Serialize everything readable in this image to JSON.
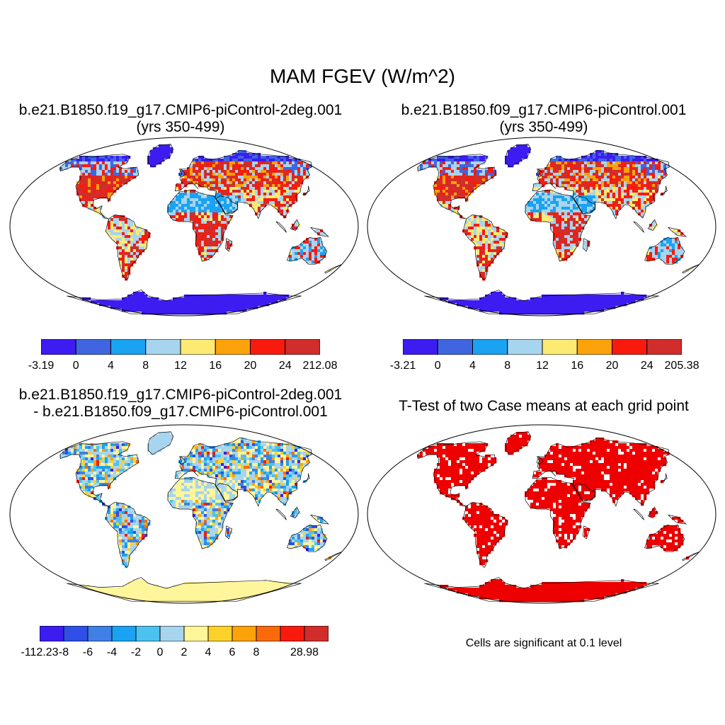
{
  "title": "MAM FGEV (W/m^2)",
  "panels": [
    {
      "title_line1": "b.e21.B1850.f19_g17.CMIP6-piControl-2deg.001",
      "title_line2": "(yrs 350-499)",
      "colorbar": {
        "colors": [
          "#3d1cf2",
          "#3f66e0",
          "#1aa3f2",
          "#a7d4ee",
          "#fdea73",
          "#fca20b",
          "#f91a0e",
          "#d12d2b"
        ],
        "labels": [
          "-3.19",
          "0",
          "4",
          "8",
          "12",
          "16",
          "20",
          "24",
          "212.08"
        ]
      }
    },
    {
      "title_line1": "b.e21.B1850.f09_g17.CMIP6-piControl.001",
      "title_line2": "(yrs 350-499)",
      "colorbar": {
        "colors": [
          "#3d1cf2",
          "#3f66e0",
          "#1aa3f2",
          "#a7d4ee",
          "#fdea73",
          "#fca20b",
          "#f91a0e",
          "#d12d2b"
        ],
        "labels": [
          "-3.21",
          "0",
          "4",
          "8",
          "12",
          "16",
          "20",
          "24",
          "205.38"
        ]
      }
    },
    {
      "title_line1": "b.e21.B1850.f19_g17.CMIP6-piControl-2deg.001",
      "title_line2": "- b.e21.B1850.f09_g17.CMIP6-piControl.001",
      "colorbar": {
        "colors": [
          "#3d1cf2",
          "#2f4fe8",
          "#3f7fe6",
          "#1aa3f2",
          "#4cc2f0",
          "#a7d4ee",
          "#fff59a",
          "#fcd22a",
          "#fca20b",
          "#fb6a0a",
          "#f91a0e",
          "#d12d2b"
        ],
        "labels": [
          "-112.23",
          "-8",
          "-6",
          "-4",
          "-2",
          "0",
          "2",
          "4",
          "6",
          "8",
          "",
          "28.98"
        ]
      }
    },
    {
      "title_line1": "T-Test of two Case means at each grid point",
      "note": "Cells are significant at 0.1 level",
      "fill_color": "#ee0000"
    }
  ]
}
